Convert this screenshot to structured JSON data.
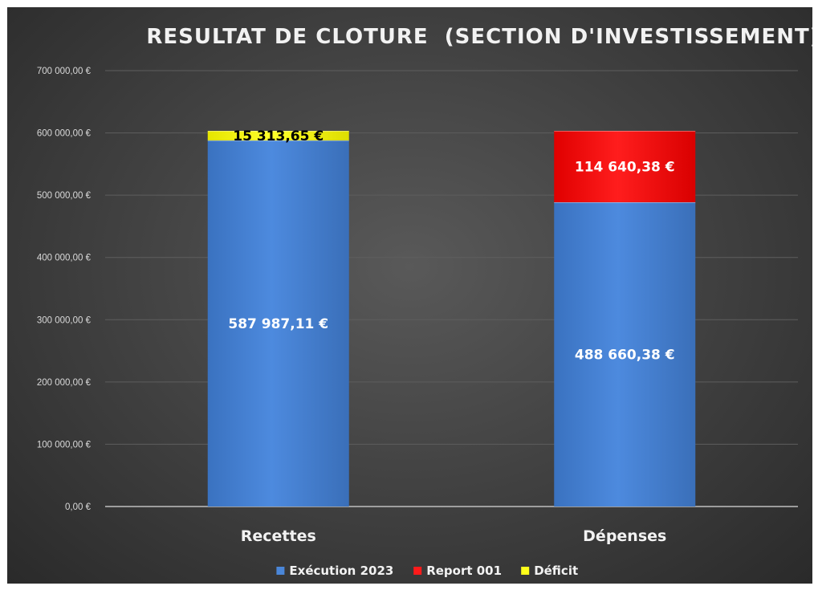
{
  "chart_data": {
    "type": "bar",
    "stacked": true,
    "title": "RESULTAT DE CLOTURE  (SECTION D'INVESTISSEMENT)",
    "categories": [
      "Recettes",
      "Dépenses"
    ],
    "ylim": [
      0,
      700000
    ],
    "yticks": [
      0,
      100000,
      200000,
      300000,
      400000,
      500000,
      600000,
      700000
    ],
    "ytick_labels": [
      "0,00 €",
      "100 000,00 €",
      "200 000,00 €",
      "300 000,00 €",
      "400 000,00 €",
      "500 000,00 €",
      "600 000,00 €",
      "700 000,00 €"
    ],
    "grid": true,
    "legend_position": "bottom",
    "series": [
      {
        "name": "Exécution 2023",
        "color": "#4a86d8",
        "values": [
          587987.11,
          488660.38
        ],
        "labels": [
          "587 987,11 €",
          "488 660,38 €"
        ],
        "label_color": "#ffffff"
      },
      {
        "name": "Report 001",
        "color": "#ff1a1a",
        "values": [
          0,
          114640.38
        ],
        "labels": [
          "",
          "114 640,38 €"
        ],
        "label_color": "#ffffff"
      },
      {
        "name": "Déficit",
        "color": "#ffff1a",
        "values": [
          15313.65,
          0
        ],
        "labels": [
          "15 313,65 €",
          ""
        ],
        "label_color": "#000000"
      }
    ]
  }
}
